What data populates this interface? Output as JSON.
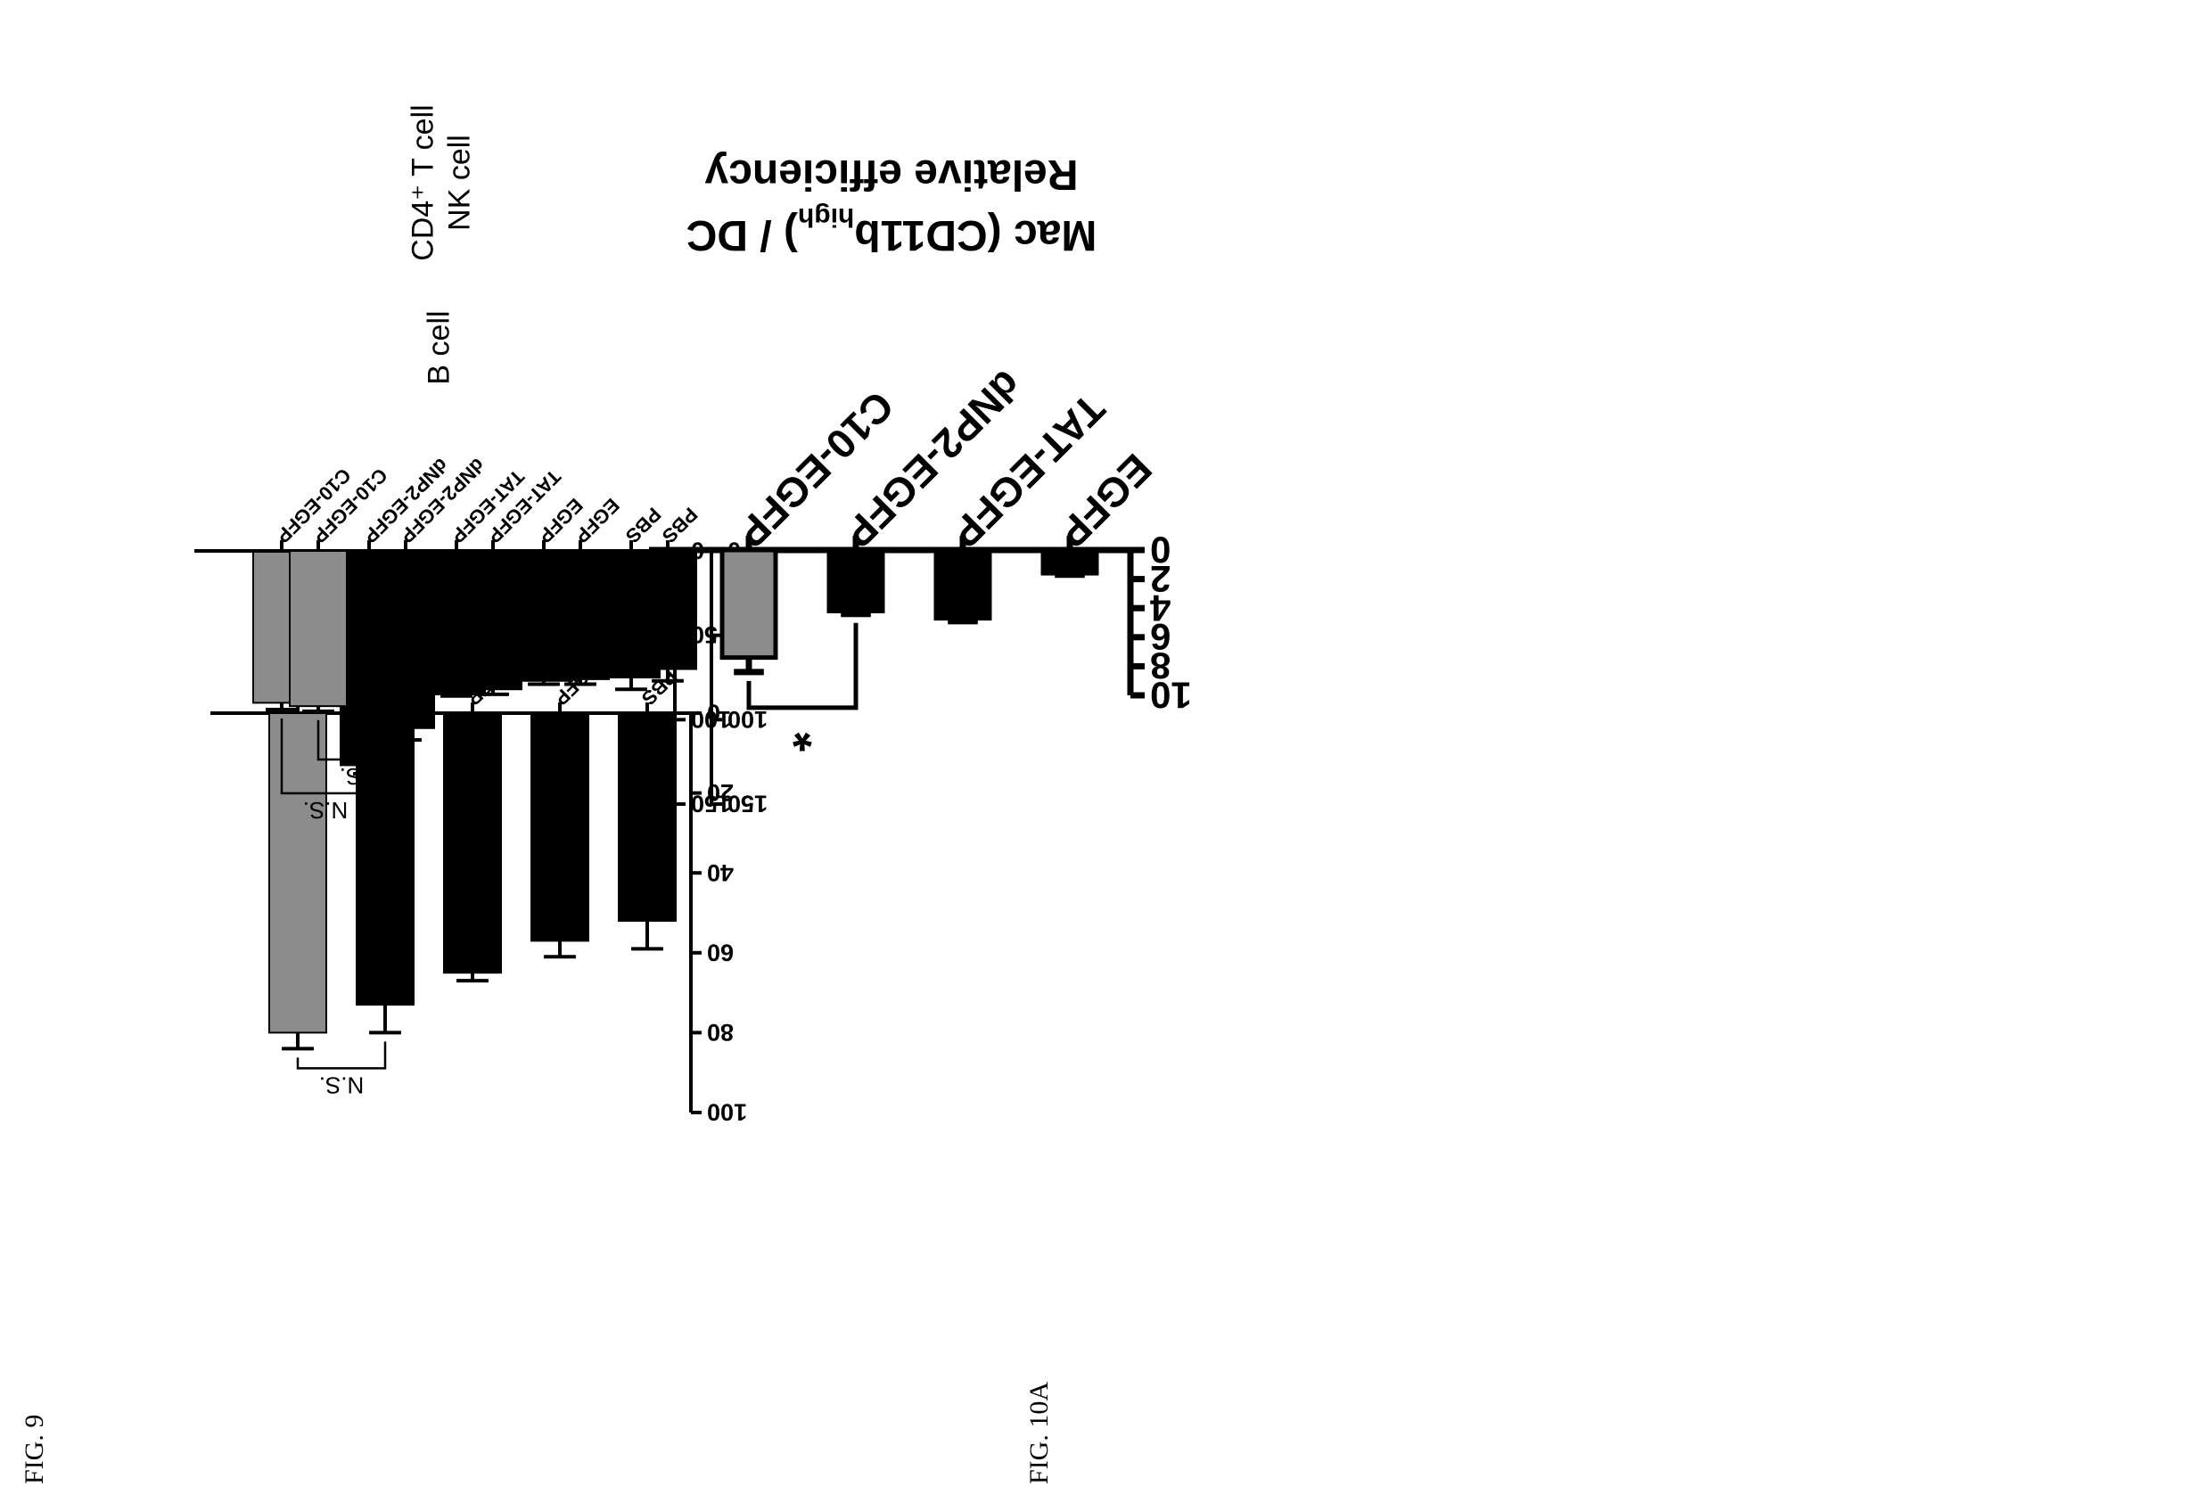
{
  "figures": [
    {
      "label": "FIG. 9"
    },
    {
      "label": "FIG. 10A"
    }
  ],
  "colors": {
    "bar_dark": "#000000",
    "bar_highlight": "#8c8c8c",
    "axis": "#000000"
  },
  "chart_data": [
    {
      "type": "bar",
      "title": "B cell",
      "categories": [
        "PBS",
        "EGFP",
        "TAT-EGFP",
        "dNP2-EGFP",
        "C10-EGFP"
      ],
      "values": [
        52,
        57,
        65,
        73,
        80
      ],
      "errors": [
        7,
        4,
        2,
        7,
        4
      ],
      "ylim": [
        0,
        100
      ],
      "yticks": [
        "0",
        "20",
        "40",
        "60",
        "80",
        "100"
      ],
      "xlabel": "",
      "ylabel": "",
      "annotation": {
        "text": "N.S.",
        "from": "dNP2-EGFP",
        "to": "C10-EGFP"
      }
    },
    {
      "type": "bar",
      "title": "CD4⁺ T cell",
      "categories": [
        "PBS",
        "EGFP",
        "TAT-EGFP",
        "dNP2-EGFP",
        "C10-EGFP"
      ],
      "values": [
        75,
        77,
        85,
        127,
        90
      ],
      "errors": [
        7,
        2,
        1,
        5,
        4
      ],
      "ylim": [
        0,
        150
      ],
      "yticks": [
        "0",
        "50",
        "100",
        "150"
      ],
      "xlabel": "",
      "ylabel": "",
      "annotation": {
        "text": "N.S.",
        "from": "dNP2-EGFP",
        "to": "C10-EGFP"
      }
    },
    {
      "type": "bar",
      "title": "NK cell",
      "categories": [
        "PBS",
        "EGFP",
        "TAT-EGFP",
        "dNP2-EGFP",
        "C10-EGFP"
      ],
      "values": [
        70,
        76,
        82,
        105,
        92
      ],
      "errors": [
        7,
        3,
        3,
        7,
        3
      ],
      "ylim": [
        0,
        150
      ],
      "yticks": [
        "0",
        "50",
        "100",
        "150"
      ],
      "xlabel": "",
      "ylabel": "",
      "annotation": {
        "text": "N.S.",
        "from": "dNP2-EGFP",
        "to": "C10-EGFP"
      }
    },
    {
      "type": "bar",
      "title": "",
      "categories": [
        "EGFP",
        "TAT-EGFP",
        "dNP2-EGFP",
        "C10-EGFP"
      ],
      "values": [
        1.6,
        4.7,
        4.2,
        7.4
      ],
      "errors": [
        0.1,
        0.2,
        0.2,
        1.0
      ],
      "ylim": [
        0,
        10
      ],
      "yticks": [
        "0",
        "2",
        "4",
        "6",
        "8",
        "10"
      ],
      "xlabel": "",
      "ylabel_line1": "Relative efficiency",
      "ylabel_line2_pre": "Mac (CD11b",
      "ylabel_line2_sup": "high",
      "ylabel_line2_post": ") / DC",
      "annotation": {
        "text": "*",
        "from": "dNP2-EGFP",
        "to": "C10-EGFP"
      }
    }
  ]
}
